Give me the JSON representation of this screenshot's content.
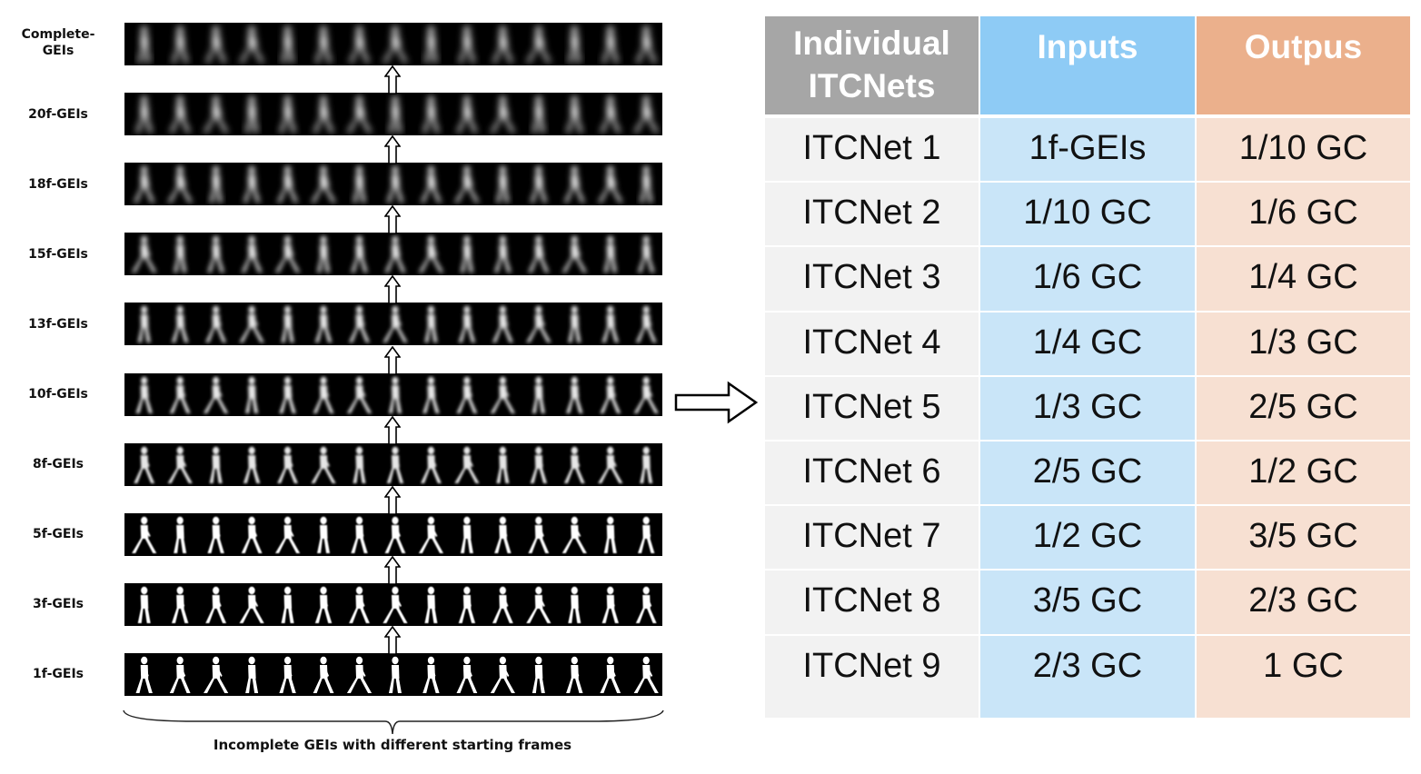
{
  "diagram": {
    "row_labels": [
      "Complete-GEIs",
      "20f-GEIs",
      "18f-GEIs",
      "15f-GEIs",
      "13f-GEIs",
      "10f-GEIs",
      "8f-GEIs",
      "5f-GEIs",
      "3f-GEIs",
      "1f-GEIs"
    ],
    "caption": "Incomplete GEIs with different starting frames"
  },
  "table": {
    "headers": [
      "Individual ITCNets",
      "Inputs",
      "Outpus"
    ],
    "rows": [
      [
        "ITCNet 1",
        "1f-GEIs",
        "1/10 GC"
      ],
      [
        "ITCNet 2",
        "1/10 GC",
        "1/6 GC"
      ],
      [
        "ITCNet 3",
        "1/6 GC",
        "1/4 GC"
      ],
      [
        "ITCNet 4",
        "1/4 GC",
        "1/3 GC"
      ],
      [
        "ITCNet 5",
        "1/3 GC",
        "2/5 GC"
      ],
      [
        "ITCNet 6",
        "2/5 GC",
        "1/2 GC"
      ],
      [
        "ITCNet 7",
        "1/2 GC",
        "3/5 GC"
      ],
      [
        "ITCNet 8",
        "3/5 GC",
        "2/3 GC"
      ],
      [
        "ITCNet 9",
        "2/3 GC",
        "1 GC"
      ]
    ],
    "colors": {
      "header_col1": "#a6a6a6",
      "header_col2": "#8ecbf5",
      "header_col3": "#ebb08c",
      "body_col1": "#f2f2f2",
      "body_col2": "#c9e5f8",
      "body_col3": "#f7e0d2"
    }
  }
}
